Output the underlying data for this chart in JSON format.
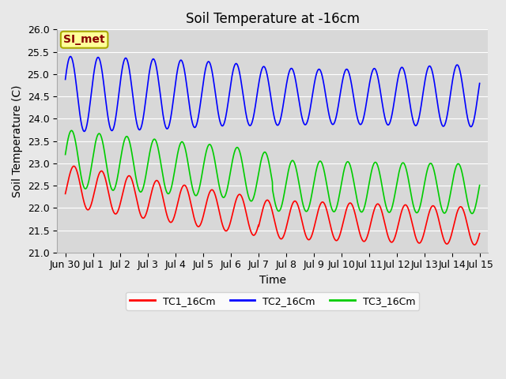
{
  "title": "Soil Temperature at -16cm",
  "xlabel": "Time",
  "ylabel": "Soil Temperature (C)",
  "ylim": [
    21.0,
    26.0
  ],
  "yticks": [
    21.0,
    21.5,
    22.0,
    22.5,
    23.0,
    23.5,
    24.0,
    24.5,
    25.0,
    25.5,
    26.0
  ],
  "xtick_labels": [
    "Jun 30",
    "Jul 1",
    "Jul 2",
    "Jul 3",
    "Jul 4",
    "Jul 5",
    "Jul 6",
    "Jul 7",
    "Jul 8",
    "Jul 9",
    "Jul 10",
    "Jul 11",
    "Jul 12",
    "Jul 13",
    "Jul 14",
    "Jul 15"
  ],
  "tc1_color": "#ff0000",
  "tc2_color": "#0000ff",
  "tc3_color": "#00cc00",
  "tc1_label": "TC1_16Cm",
  "tc2_label": "TC2_16Cm",
  "tc3_label": "TC3_16Cm",
  "annotation_text": "SI_met",
  "annotation_color": "#880000",
  "annotation_bg": "#ffff99",
  "annotation_edge": "#aaaa00",
  "fig_bg_color": "#e8e8e8",
  "plot_bg_color": "#d8d8d8",
  "grid_color": "#ffffff",
  "linewidth": 1.2,
  "title_fontsize": 12,
  "axis_label_fontsize": 10,
  "tick_fontsize": 9,
  "legend_fontsize": 9
}
